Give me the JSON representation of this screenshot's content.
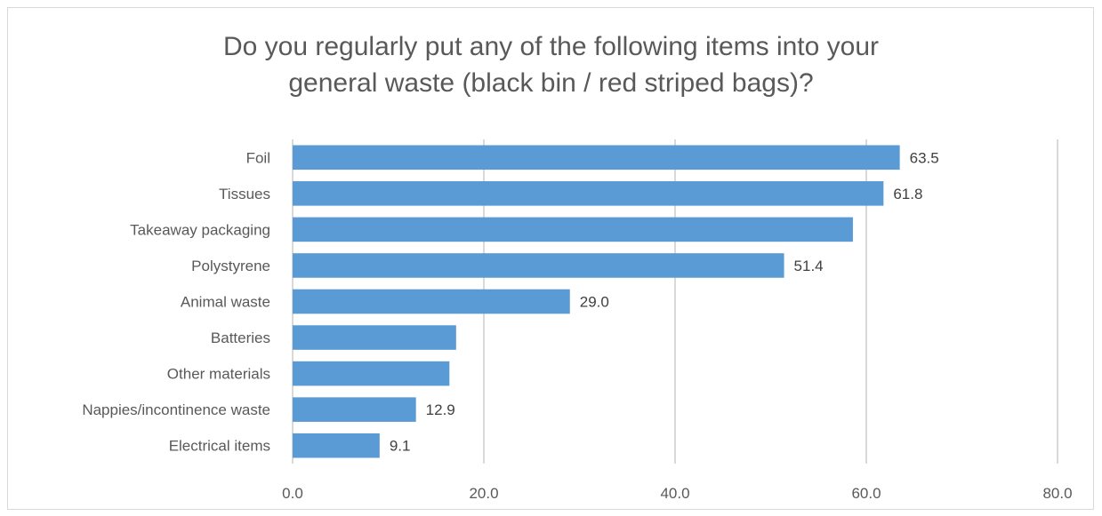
{
  "chart_data": {
    "type": "bar",
    "orientation": "horizontal",
    "title": "Do you regularly put any of the following items into your general waste (black bin / red striped bags)?",
    "title_lines": [
      "Do you regularly put any of the following items into your",
      "general waste (black bin / red striped bags)?"
    ],
    "categories": [
      "Foil",
      "Tissues",
      "Takeaway packaging",
      "Polystyrene",
      "Animal waste",
      "Batteries",
      "Other materials",
      "Nappies/incontinence waste",
      "Electrical items"
    ],
    "values": [
      63.5,
      61.8,
      58.6,
      51.4,
      29.0,
      17.1,
      16.4,
      12.9,
      9.1
    ],
    "data_labels": [
      "63.5",
      "61.8",
      "",
      "51.4",
      "29.0",
      "",
      "",
      "12.9",
      "9.1"
    ],
    "xlim": [
      0,
      80
    ],
    "xticks": [
      "0.0",
      "20.0",
      "40.0",
      "60.0",
      "80.0"
    ],
    "grid": true,
    "legend": "none",
    "bar_color": "#5b9bd5",
    "grid_color": "#d9d9d9"
  }
}
